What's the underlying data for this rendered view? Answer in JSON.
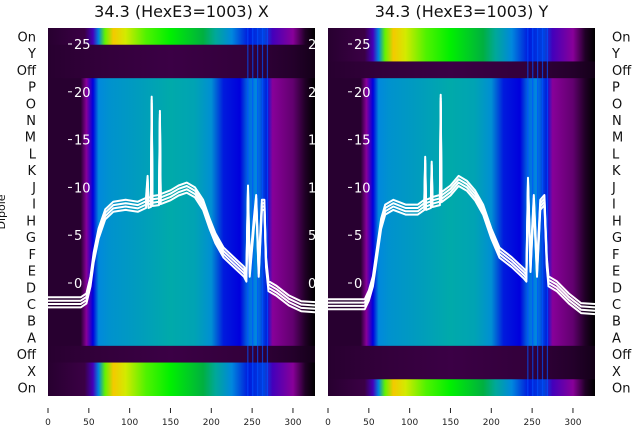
{
  "chart_data": [
    {
      "type": "heatmap",
      "title": "34.3 (HexE3=1003) X",
      "ylabel": "Dipole",
      "xlim": [
        0,
        327
      ],
      "xticks": [
        "0",
        "50",
        "100",
        "150",
        "200",
        "250",
        "300"
      ],
      "row_labels": [
        "On",
        "Y",
        "Off",
        "P",
        "O",
        "N",
        "M",
        "L",
        "K",
        "J",
        "I",
        "H",
        "G",
        "F",
        "E",
        "D",
        "C",
        "B",
        "A",
        "Off",
        "X",
        "On"
      ],
      "row_kind": [
        "bright",
        "dark",
        "dark",
        "mid",
        "mid",
        "mid",
        "mid",
        "mid",
        "mid",
        "mid",
        "mid",
        "mid",
        "mid",
        "mid",
        "mid",
        "mid",
        "mid",
        "mid",
        "mid",
        "dark",
        "bright",
        "bright"
      ],
      "overlay_ylim": [
        -2.35,
        26.3
      ],
      "overlay_yticks": [
        "0",
        "5",
        "10",
        "15",
        "20",
        "25"
      ],
      "overlay_line": [
        [
          0,
          -2.2
        ],
        [
          40,
          -2.2
        ],
        [
          47,
          -1.8
        ],
        [
          52,
          0
        ],
        [
          56,
          2.5
        ],
        [
          62,
          5
        ],
        [
          70,
          7
        ],
        [
          80,
          7.8
        ],
        [
          95,
          8
        ],
        [
          110,
          7.8
        ],
        [
          120,
          8.2
        ],
        [
          122,
          10.5
        ],
        [
          123,
          8.2
        ],
        [
          126,
          8.3
        ],
        [
          127,
          18.8
        ],
        [
          128,
          8.4
        ],
        [
          136,
          8.5
        ],
        [
          137,
          17.3
        ],
        [
          138,
          8.6
        ],
        [
          150,
          9
        ],
        [
          160,
          9.5
        ],
        [
          170,
          9.8
        ],
        [
          180,
          9.3
        ],
        [
          190,
          8
        ],
        [
          198,
          6
        ],
        [
          205,
          4.5
        ],
        [
          215,
          3
        ],
        [
          230,
          1.8
        ],
        [
          240,
          1
        ],
        [
          243,
          0.5
        ],
        [
          245,
          9.5
        ],
        [
          247,
          1
        ],
        [
          252,
          6
        ],
        [
          255,
          8.5
        ],
        [
          258,
          1
        ],
        [
          262,
          8
        ],
        [
          265,
          8
        ],
        [
          267,
          2
        ],
        [
          270,
          -0.5
        ],
        [
          280,
          -1
        ],
        [
          295,
          -2
        ],
        [
          310,
          -2.6
        ],
        [
          327,
          -2.7
        ]
      ]
    },
    {
      "type": "heatmap",
      "title": "34.3 (HexE3=1003) Y",
      "ylabel": "",
      "xlim": [
        0,
        327
      ],
      "xticks": [
        "0",
        "50",
        "100",
        "150",
        "200",
        "250",
        "300"
      ],
      "row_labels": [
        "On",
        "Y",
        "Off",
        "P",
        "O",
        "N",
        "M",
        "L",
        "K",
        "J",
        "I",
        "H",
        "G",
        "F",
        "E",
        "D",
        "C",
        "B",
        "A",
        "Off",
        "X",
        "On"
      ],
      "row_kind": [
        "bright",
        "bright",
        "dark",
        "mid",
        "mid",
        "mid",
        "mid",
        "mid",
        "mid",
        "mid",
        "mid",
        "mid",
        "mid",
        "mid",
        "mid",
        "mid",
        "mid",
        "mid",
        "mid",
        "dark",
        "dark",
        "bright"
      ],
      "overlay_ylim": [
        -2.35,
        26.3
      ],
      "overlay_yticks": [
        "0",
        "5",
        "10",
        "15",
        "20",
        "25"
      ],
      "overlay_line": [
        [
          0,
          -2.4
        ],
        [
          45,
          -2.4
        ],
        [
          50,
          -1.5
        ],
        [
          55,
          0
        ],
        [
          60,
          3
        ],
        [
          65,
          6
        ],
        [
          70,
          7.5
        ],
        [
          80,
          8
        ],
        [
          95,
          7.5
        ],
        [
          110,
          7.5
        ],
        [
          118,
          8
        ],
        [
          119,
          12.5
        ],
        [
          120,
          8
        ],
        [
          126,
          8.2
        ],
        [
          127,
          12
        ],
        [
          128,
          8.3
        ],
        [
          137,
          8.5
        ],
        [
          138,
          19
        ],
        [
          139,
          8.8
        ],
        [
          150,
          9.5
        ],
        [
          160,
          10.5
        ],
        [
          170,
          10
        ],
        [
          180,
          9
        ],
        [
          190,
          7.5
        ],
        [
          200,
          5
        ],
        [
          210,
          3
        ],
        [
          225,
          2
        ],
        [
          240,
          0.8
        ],
        [
          243,
          0.5
        ],
        [
          245,
          10.3
        ],
        [
          248,
          1.5
        ],
        [
          252,
          8.5
        ],
        [
          256,
          1
        ],
        [
          260,
          8
        ],
        [
          265,
          8.5
        ],
        [
          268,
          2
        ],
        [
          270,
          0
        ],
        [
          280,
          -0.5
        ],
        [
          295,
          -1.8
        ],
        [
          310,
          -2.8
        ],
        [
          327,
          -2.9
        ]
      ]
    }
  ]
}
